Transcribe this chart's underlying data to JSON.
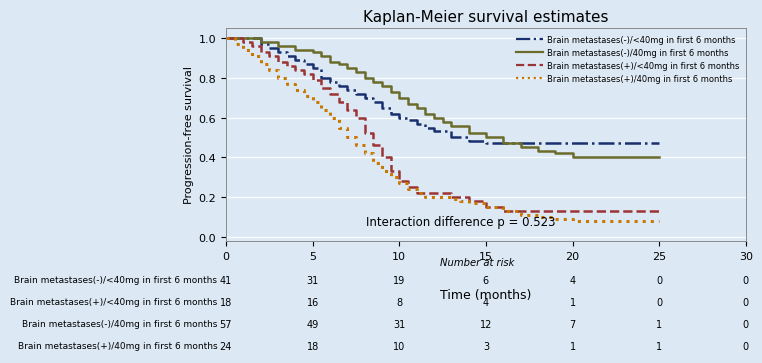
{
  "title": "Kaplan-Meier survival estimates",
  "xlabel": "Time (months)",
  "ylabel": "Progression-free survival",
  "xlim": [
    0,
    30
  ],
  "ylim": [
    -0.02,
    1.05
  ],
  "xticks": [
    0,
    5,
    10,
    15,
    20,
    25,
    30
  ],
  "yticks": [
    0.0,
    0.2,
    0.4,
    0.6,
    0.8,
    1.0
  ],
  "annotation": "Interaction difference p = 0.523",
  "background_color": "#dce9f5",
  "curves": [
    {
      "label": "Brain metastases(-)/<40mg in first 6 months",
      "color": "#1a2f6e",
      "linestyle": "dashdot",
      "linewidth": 1.8,
      "times": [
        0,
        1.5,
        2,
        2.5,
        3,
        3.5,
        4,
        4.5,
        5,
        5.5,
        6,
        6.5,
        7,
        7.5,
        8,
        8.5,
        9,
        9.5,
        10,
        10.5,
        11,
        11.5,
        12,
        13,
        14,
        15,
        16,
        17,
        18,
        19,
        20,
        21,
        25
      ],
      "survival": [
        1.0,
        1.0,
        0.97,
        0.95,
        0.93,
        0.91,
        0.89,
        0.87,
        0.85,
        0.8,
        0.78,
        0.76,
        0.74,
        0.72,
        0.7,
        0.68,
        0.65,
        0.62,
        0.6,
        0.59,
        0.57,
        0.55,
        0.53,
        0.5,
        0.48,
        0.47,
        0.47,
        0.47,
        0.47,
        0.47,
        0.47,
        0.47,
        0.47
      ]
    },
    {
      "label": "Brain metastases(-)/40mg in first 6 months",
      "color": "#6b6b2a",
      "linestyle": "solid",
      "linewidth": 1.8,
      "times": [
        0,
        1,
        2,
        3,
        4,
        5,
        5.5,
        6,
        6.5,
        7,
        7.5,
        8,
        8.5,
        9,
        9.5,
        10,
        10.5,
        11,
        11.5,
        12,
        12.5,
        13,
        14,
        15,
        16,
        17,
        18,
        19,
        20,
        21,
        25
      ],
      "survival": [
        1.0,
        1.0,
        0.98,
        0.96,
        0.94,
        0.93,
        0.91,
        0.88,
        0.87,
        0.85,
        0.83,
        0.8,
        0.78,
        0.76,
        0.73,
        0.7,
        0.67,
        0.65,
        0.62,
        0.6,
        0.58,
        0.56,
        0.52,
        0.5,
        0.47,
        0.45,
        0.43,
        0.42,
        0.4,
        0.4,
        0.4
      ]
    },
    {
      "label": "Brain metastases(+)/<40mg in first 6 months",
      "color": "#9b3535",
      "linestyle": "dashed",
      "linewidth": 1.8,
      "times": [
        0,
        1,
        1.5,
        2,
        2.5,
        3,
        3.5,
        4,
        4.5,
        5,
        5.5,
        6,
        6.5,
        7,
        7.5,
        8,
        8.5,
        9,
        9.5,
        10,
        10.5,
        11,
        11.5,
        12,
        12.5,
        13,
        14,
        15,
        16,
        17,
        18,
        19,
        20,
        25
      ],
      "survival": [
        1.0,
        0.98,
        0.96,
        0.93,
        0.91,
        0.88,
        0.86,
        0.84,
        0.82,
        0.79,
        0.75,
        0.72,
        0.68,
        0.64,
        0.6,
        0.52,
        0.46,
        0.4,
        0.33,
        0.28,
        0.25,
        0.22,
        0.22,
        0.22,
        0.22,
        0.2,
        0.18,
        0.15,
        0.13,
        0.13,
        0.13,
        0.13,
        0.13,
        0.13
      ]
    },
    {
      "label": "Brain metastases(+)/40mg in first 6 months",
      "color": "#c87800",
      "linestyle": "dotted",
      "linewidth": 2.2,
      "times": [
        0,
        0.5,
        1,
        1.5,
        2,
        2.5,
        3,
        3.5,
        4,
        4.5,
        5,
        5.5,
        6,
        6.5,
        7,
        7.5,
        8,
        8.5,
        9,
        9.5,
        10,
        10.5,
        11,
        11.5,
        12,
        12.5,
        13,
        13.5,
        14,
        15,
        16,
        17,
        18,
        19,
        20,
        21,
        22,
        23,
        24,
        25
      ],
      "survival": [
        1.0,
        0.97,
        0.94,
        0.91,
        0.87,
        0.84,
        0.8,
        0.77,
        0.74,
        0.71,
        0.68,
        0.64,
        0.6,
        0.55,
        0.5,
        0.46,
        0.42,
        0.37,
        0.33,
        0.3,
        0.27,
        0.24,
        0.22,
        0.2,
        0.2,
        0.2,
        0.19,
        0.18,
        0.17,
        0.15,
        0.13,
        0.11,
        0.1,
        0.09,
        0.08,
        0.08,
        0.08,
        0.08,
        0.08,
        0.08
      ]
    }
  ],
  "risk_table": {
    "header": "Number at risk",
    "rows": [
      {
        "label": "Brain metastases(-)/<40mg in first 6 months",
        "counts": [
          41,
          31,
          19,
          6,
          4,
          0,
          0
        ]
      },
      {
        "label": "Brain metastases(+)/<40mg in first 6 months",
        "counts": [
          18,
          16,
          8,
          4,
          1,
          0,
          0
        ]
      },
      {
        "label": "Brain metastases(-)/40mg in first 6 months",
        "counts": [
          57,
          49,
          31,
          12,
          7,
          1,
          0
        ]
      },
      {
        "label": "Brain metastases(+)/40mg in first 6 months",
        "counts": [
          24,
          18,
          10,
          3,
          1,
          1,
          0
        ]
      }
    ],
    "time_points": [
      0,
      5,
      10,
      15,
      20,
      25,
      30
    ]
  }
}
